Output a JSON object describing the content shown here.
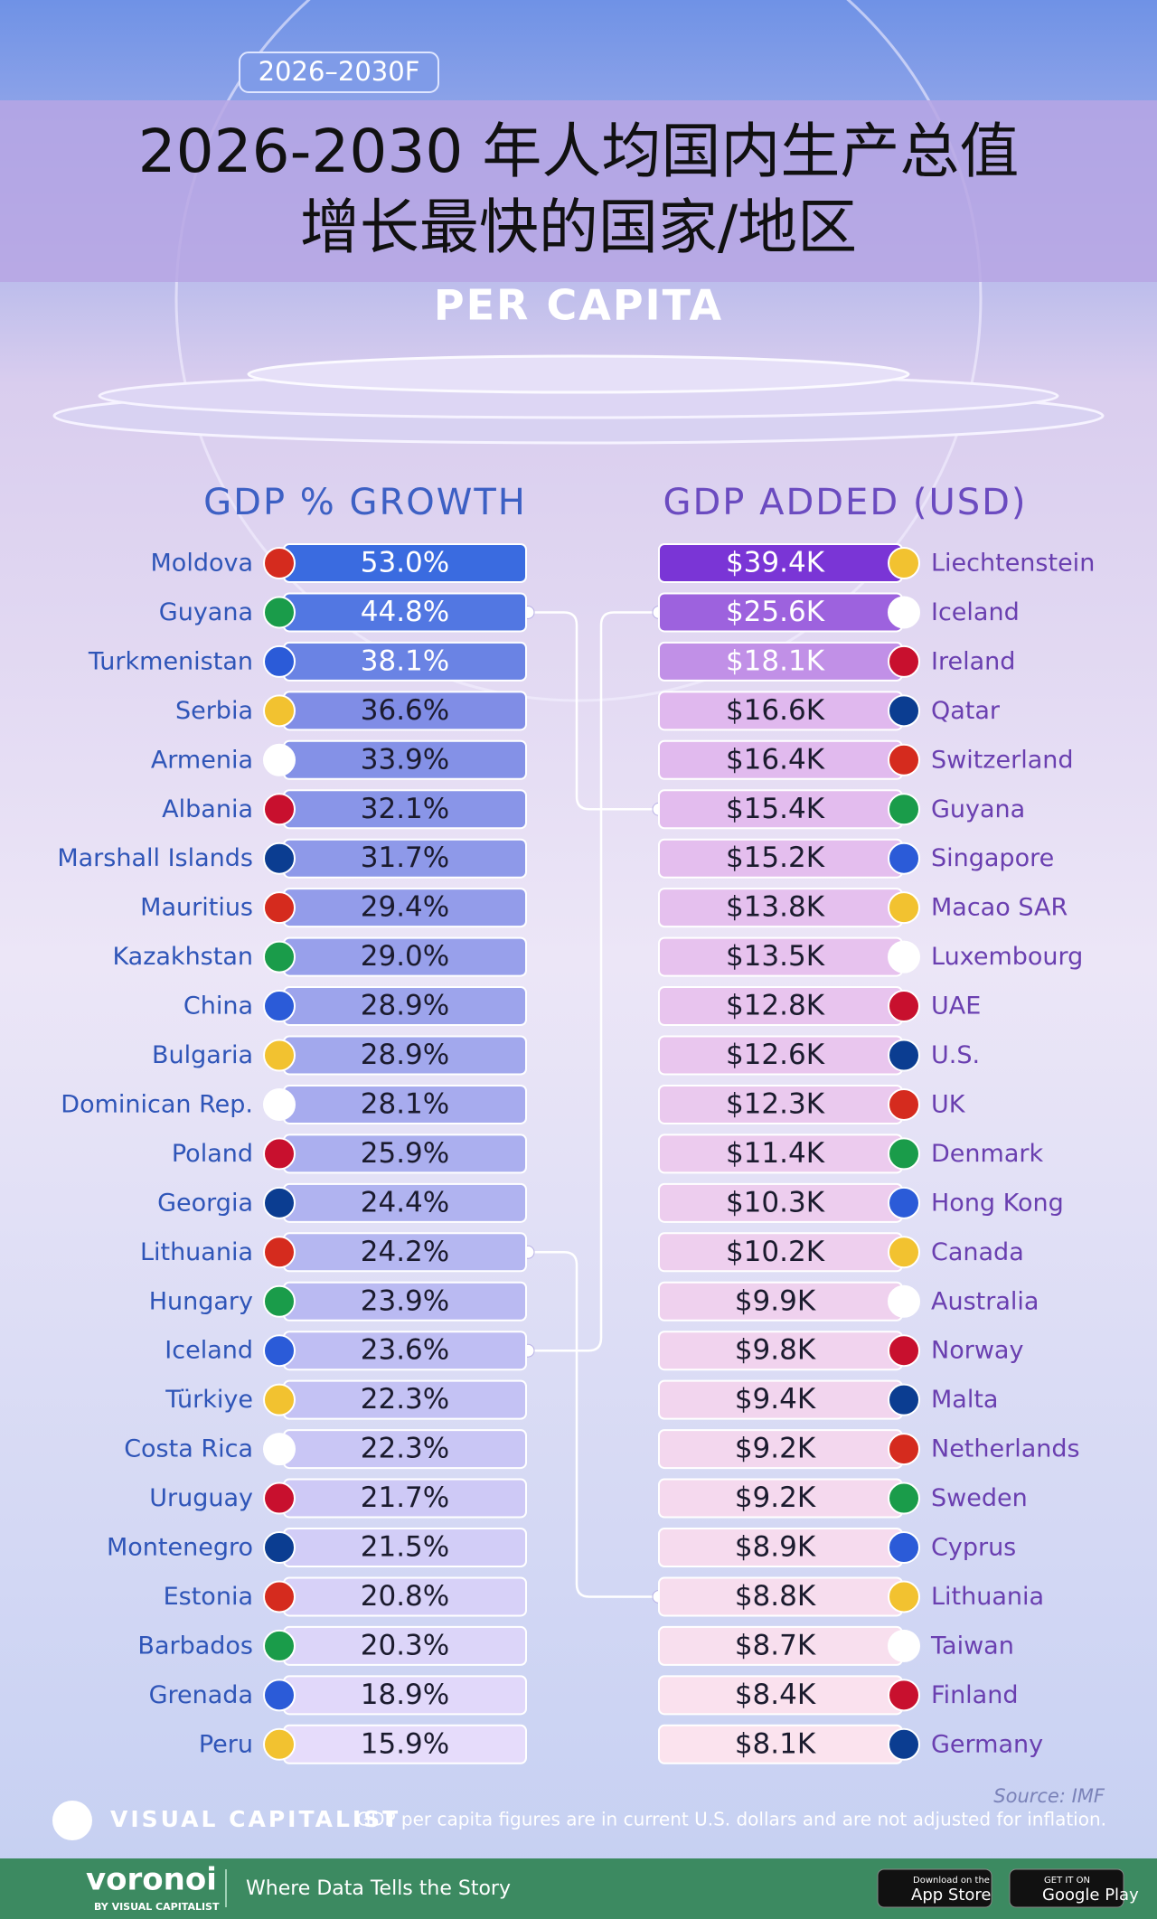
{
  "badge": "2026–2030F",
  "title_lines": [
    "2026-2030 年人均国内生产总值",
    "增长最快的国家/地区"
  ],
  "subtitle": "PER CAPITA",
  "growth": {
    "heading": "GDP % GROWTH",
    "rows": [
      {
        "country": "Moldova",
        "value": "53.0%"
      },
      {
        "country": "Guyana",
        "value": "44.8%"
      },
      {
        "country": "Turkmenistan",
        "value": "38.1%"
      },
      {
        "country": "Serbia",
        "value": "36.6%"
      },
      {
        "country": "Armenia",
        "value": "33.9%"
      },
      {
        "country": "Albania",
        "value": "32.1%"
      },
      {
        "country": "Marshall Islands",
        "value": "31.7%"
      },
      {
        "country": "Mauritius",
        "value": "29.4%"
      },
      {
        "country": "Kazakhstan",
        "value": "29.0%"
      },
      {
        "country": "China",
        "value": "28.9%"
      },
      {
        "country": "Bulgaria",
        "value": "28.9%"
      },
      {
        "country": "Dominican Rep.",
        "value": "28.1%"
      },
      {
        "country": "Poland",
        "value": "25.9%"
      },
      {
        "country": "Georgia",
        "value": "24.4%"
      },
      {
        "country": "Lithuania",
        "value": "24.2%"
      },
      {
        "country": "Hungary",
        "value": "23.9%"
      },
      {
        "country": "Iceland",
        "value": "23.6%"
      },
      {
        "country": "Türkiye",
        "value": "22.3%"
      },
      {
        "country": "Costa Rica",
        "value": "22.3%"
      },
      {
        "country": "Uruguay",
        "value": "21.7%"
      },
      {
        "country": "Montenegro",
        "value": "21.5%"
      },
      {
        "country": "Estonia",
        "value": "20.8%"
      },
      {
        "country": "Barbados",
        "value": "20.3%"
      },
      {
        "country": "Grenada",
        "value": "18.9%"
      },
      {
        "country": "Peru",
        "value": "15.9%"
      }
    ]
  },
  "added": {
    "heading": "GDP ADDED (USD)",
    "rows": [
      {
        "country": "Liechtenstein",
        "value": "$39.4K"
      },
      {
        "country": "Iceland",
        "value": "$25.6K"
      },
      {
        "country": "Ireland",
        "value": "$18.1K"
      },
      {
        "country": "Qatar",
        "value": "$16.6K"
      },
      {
        "country": "Switzerland",
        "value": "$16.4K"
      },
      {
        "country": "Guyana",
        "value": "$15.4K"
      },
      {
        "country": "Singapore",
        "value": "$15.2K"
      },
      {
        "country": "Macao SAR",
        "value": "$13.8K"
      },
      {
        "country": "Luxembourg",
        "value": "$13.5K"
      },
      {
        "country": "UAE",
        "value": "$12.8K"
      },
      {
        "country": "U.S.",
        "value": "$12.6K"
      },
      {
        "country": "UK",
        "value": "$12.3K"
      },
      {
        "country": "Denmark",
        "value": "$11.4K"
      },
      {
        "country": "Hong Kong",
        "value": "$10.3K"
      },
      {
        "country": "Canada",
        "value": "$10.2K"
      },
      {
        "country": "Australia",
        "value": "$9.9K"
      },
      {
        "country": "Norway",
        "value": "$9.8K"
      },
      {
        "country": "Malta",
        "value": "$9.4K"
      },
      {
        "country": "Netherlands",
        "value": "$9.2K"
      },
      {
        "country": "Sweden",
        "value": "$9.2K"
      },
      {
        "country": "Cyprus",
        "value": "$8.9K"
      },
      {
        "country": "Lithuania",
        "value": "$8.8K"
      },
      {
        "country": "Taiwan",
        "value": "$8.7K"
      },
      {
        "country": "Finland",
        "value": "$8.4K"
      },
      {
        "country": "Germany",
        "value": "$8.1K"
      }
    ]
  },
  "source": "Source: IMF",
  "brand": "VISUAL CAPITALIST",
  "note": "GDP per capita figures are in current U.S. dollars and are not adjusted for inflation.",
  "footer": {
    "brand": "voronoi",
    "byline": "BY VISUAL CAPITALIST",
    "tagline": "Where Data Tells the Story",
    "app_store_small": "Download on the",
    "app_store": "App Store",
    "google_small": "GET IT ON",
    "google": "Google Play"
  }
}
